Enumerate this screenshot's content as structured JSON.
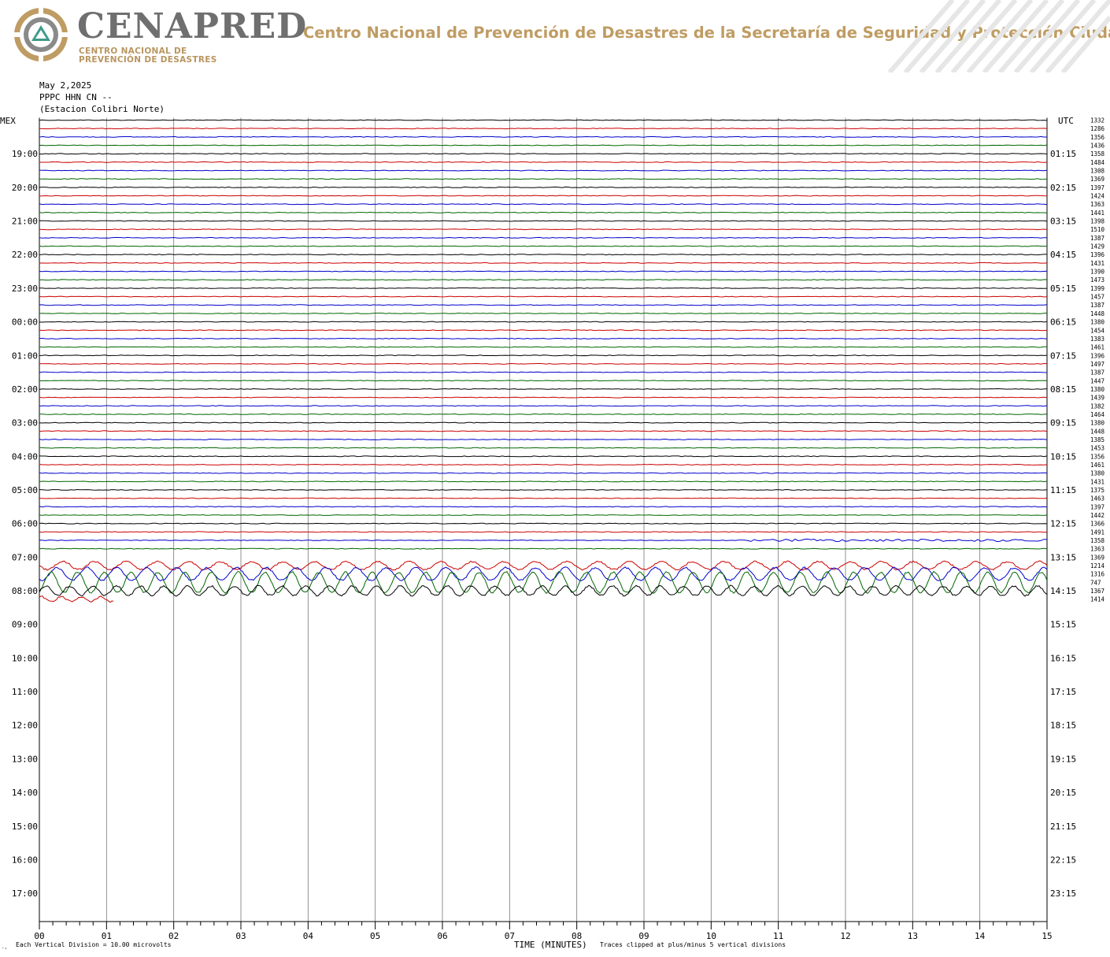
{
  "header": {
    "brand": "CENAPRED",
    "brand_sub_1": "CENTRO NACIONAL DE",
    "brand_sub_2": "PREVENCIÓN DE DESASTRES",
    "org_title": "Centro Nacional de Prevención de Desastres de la Secretaría de Seguridad y Protección Ciudadana",
    "logo_icon": "cenapred-logo-icon",
    "deco_icon": "stripe-pattern-icon",
    "colors": {
      "gold": "#bf9c63",
      "gray": "#6f6f6f"
    }
  },
  "meta": {
    "date": "May 2,2025",
    "channel": "PPPC HHN CN --",
    "station": "(Estacion Colibri Norte)"
  },
  "chart_data": {
    "type": "line",
    "title": "",
    "xlabel": "TIME (MINUTES)",
    "x_ticks": [
      "00",
      "01",
      "02",
      "03",
      "04",
      "05",
      "06",
      "07",
      "08",
      "09",
      "10",
      "11",
      "12",
      "13",
      "14",
      "15"
    ],
    "xlim": [
      0,
      15
    ],
    "left_axis_label": "MEX",
    "right_axis_label": "UTC",
    "left_hour_labels": [
      "19:00",
      "20:00",
      "21:00",
      "22:00",
      "23:00",
      "00:00",
      "01:00",
      "02:00",
      "03:00",
      "04:00",
      "05:00",
      "06:00",
      "07:00",
      "08:00",
      "09:00",
      "10:00",
      "11:00",
      "12:00",
      "13:00",
      "14:00",
      "15:00",
      "16:00",
      "17:00"
    ],
    "right_hour_labels": [
      "01:15",
      "02:15",
      "03:15",
      "04:15",
      "05:15",
      "06:15",
      "07:15",
      "08:15",
      "09:15",
      "10:15",
      "11:15",
      "12:15",
      "13:15",
      "14:15",
      "15:15",
      "16:15",
      "17:15",
      "18:15",
      "19:15",
      "20:15",
      "21:15",
      "22:15",
      "23:15"
    ],
    "trace_colors": [
      "#000000",
      "#cc0000",
      "#0000cc",
      "#006600"
    ],
    "trace_count": 58,
    "active_trace_count": 52,
    "grid": "vertical-minute-lines",
    "trace_values": [
      "1332",
      "1286",
      "1356",
      "1436",
      "1358",
      "1484",
      "1308",
      "1369",
      "1397",
      "1424",
      "1363",
      "1441",
      "1398",
      "1510",
      "1387",
      "1429",
      "1396",
      "1431",
      "1390",
      "1473",
      "1399",
      "1457",
      "1387",
      "1448",
      "1380",
      "1454",
      "1383",
      "1461",
      "1396",
      "1497",
      "1387",
      "1447",
      "1380",
      "1439",
      "1382",
      "1464",
      "1380",
      "1448",
      "1385",
      "1453",
      "1356",
      "1461",
      "1380",
      "1431",
      "1375",
      "1463",
      "1397",
      "1442",
      "1366",
      "1491",
      "1358",
      "1363",
      "1369",
      "1214",
      "1316",
      "747",
      "1367",
      "1414"
    ],
    "scale_note": "Each Vertical Division =   10.00 microvolts",
    "clip_note": "Traces clipped at plus/minus 5 vertical divisions"
  }
}
